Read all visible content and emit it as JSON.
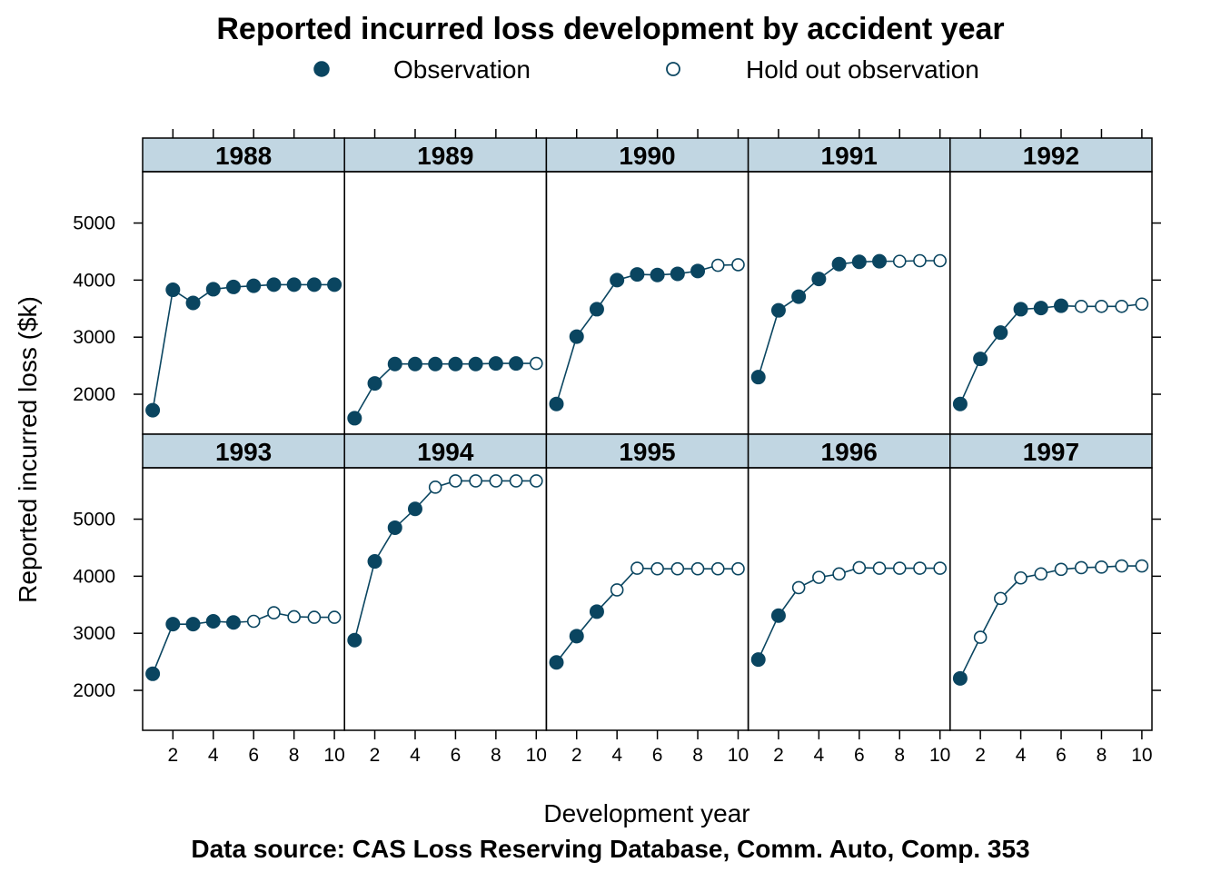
{
  "chart_data": {
    "type": "line",
    "title": "Reported incurred loss development by accident year",
    "xlabel": "Development year",
    "ylabel": "Reported incurred loss ($k)",
    "caption": "Data source: CAS Loss Reserving Database, Comm. Auto, Comp. 353",
    "legend": {
      "placement": "top",
      "entries": [
        {
          "label": "Observation",
          "marker": "filled-circle"
        },
        {
          "label": "Hold out observation",
          "marker": "open-circle"
        }
      ]
    },
    "colors": {
      "series": "#0a4560",
      "strip": "#c1d6e2"
    },
    "x": [
      1,
      2,
      3,
      4,
      5,
      6,
      7,
      8,
      9,
      10
    ],
    "xlim": [
      0.5,
      10.5
    ],
    "ylim": [
      1300,
      5900
    ],
    "xticks": [
      2,
      4,
      6,
      8,
      10
    ],
    "yticks": [
      2000,
      3000,
      4000,
      5000
    ],
    "grid": false,
    "layout": {
      "columns": 5,
      "rows": 2
    },
    "panels": [
      {
        "name": "1988",
        "values": [
          1720,
          3830,
          3600,
          3840,
          3880,
          3900,
          3920,
          3920,
          3920,
          3920
        ],
        "observed": 10
      },
      {
        "name": "1989",
        "values": [
          1580,
          2190,
          2530,
          2530,
          2530,
          2530,
          2530,
          2540,
          2540,
          2540
        ],
        "observed": 9
      },
      {
        "name": "1990",
        "values": [
          1830,
          3010,
          3490,
          4000,
          4100,
          4090,
          4110,
          4160,
          4260,
          4270
        ],
        "observed": 8
      },
      {
        "name": "1991",
        "values": [
          2300,
          3470,
          3710,
          4020,
          4280,
          4320,
          4330,
          4330,
          4340,
          4340
        ],
        "observed": 7
      },
      {
        "name": "1992",
        "values": [
          1830,
          2620,
          3080,
          3490,
          3510,
          3550,
          3540,
          3540,
          3540,
          3580
        ],
        "observed": 6
      },
      {
        "name": "1993",
        "values": [
          2290,
          3160,
          3160,
          3210,
          3190,
          3210,
          3360,
          3290,
          3280,
          3280
        ],
        "observed": 5
      },
      {
        "name": "1994",
        "values": [
          2880,
          4260,
          4850,
          5180,
          5560,
          5670,
          5670,
          5670,
          5670,
          5670
        ],
        "observed": 4
      },
      {
        "name": "1995",
        "values": [
          2490,
          2950,
          3380,
          3760,
          4140,
          4130,
          4130,
          4130,
          4130,
          4130
        ],
        "observed": 3
      },
      {
        "name": "1996",
        "values": [
          2540,
          3310,
          3800,
          3980,
          4040,
          4150,
          4140,
          4140,
          4140,
          4140
        ],
        "observed": 2
      },
      {
        "name": "1997",
        "values": [
          2210,
          2930,
          3610,
          3970,
          4040,
          4120,
          4150,
          4160,
          4180,
          4180
        ],
        "observed": 1
      }
    ]
  }
}
